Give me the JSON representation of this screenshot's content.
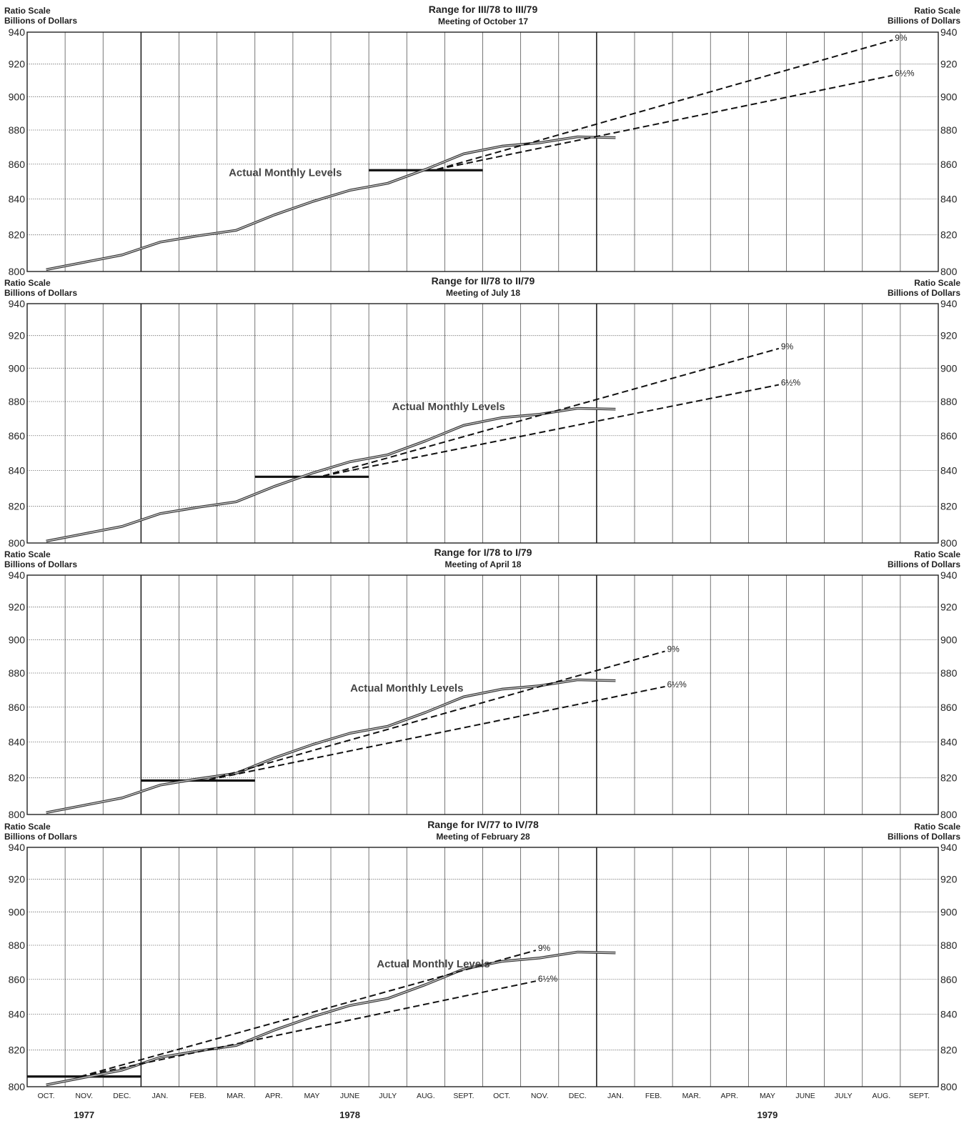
{
  "months": [
    "OCT.",
    "NOV.",
    "DEC.",
    "JAN.",
    "FEB.",
    "MAR.",
    "APR.",
    "MAY",
    "JUNE",
    "JULY",
    "AUG.",
    "SEPT.",
    "OCT.",
    "NOV.",
    "DEC.",
    "JAN.",
    "FEB.",
    "MAR.",
    "APR.",
    "MAY",
    "JUNE",
    "JULY",
    "AUG.",
    "SEPT."
  ],
  "years": [
    {
      "label": "1977",
      "month_index": 1
    },
    {
      "label": "1978",
      "month_index": 8
    },
    {
      "label": "1979",
      "month_index": 19
    }
  ],
  "chart_data": [
    {
      "type": "line",
      "title": "Range for III/78 to III/79",
      "subtitle": "Meeting of October 17",
      "ylabel_left": [
        "Ratio Scale",
        "Billions of Dollars"
      ],
      "ylabel_right": [
        "Ratio Scale",
        "Billions of Dollars"
      ],
      "y_scale": "log",
      "ylim": [
        800,
        940
      ],
      "yticks": [
        800,
        820,
        840,
        860,
        880,
        900,
        920,
        940
      ],
      "actual_label": "Actual Monthly Levels",
      "actual": [
        801,
        805,
        809,
        816,
        819.5,
        822.5,
        831,
        838.5,
        845,
        849,
        857,
        866,
        870.5,
        872.5,
        876,
        875.5
      ],
      "base": {
        "start_month": 9,
        "end_month": 12,
        "value": 856.5
      },
      "cones": [
        {
          "label": "9%",
          "start_month": 10.8,
          "start_value": 857,
          "end_month": 22.8,
          "end_value": 935
        },
        {
          "label": "6½%",
          "start_month": 10.8,
          "start_value": 857,
          "end_month": 22.8,
          "end_value": 913
        }
      ]
    },
    {
      "type": "line",
      "title": "Range for II/78 to II/79",
      "subtitle": "Meeting of July 18",
      "ylabel_left": [
        "Ratio Scale",
        "Billions of Dollars"
      ],
      "ylabel_right": [
        "Ratio Scale",
        "Billions of Dollars"
      ],
      "y_scale": "log",
      "ylim": [
        800,
        940
      ],
      "yticks": [
        800,
        820,
        840,
        860,
        880,
        900,
        920,
        940
      ],
      "actual_label": "Actual Monthly Levels",
      "actual": [
        801,
        805,
        809,
        816,
        819.5,
        822.5,
        831,
        838.5,
        845,
        849,
        857,
        866,
        870.5,
        872.5,
        876,
        875.5
      ],
      "base": {
        "start_month": 6,
        "end_month": 9,
        "value": 836.5
      },
      "cones": [
        {
          "label": "9%",
          "start_month": 7.8,
          "start_value": 837,
          "end_month": 19.8,
          "end_value": 912
        },
        {
          "label": "6½%",
          "start_month": 7.8,
          "start_value": 837,
          "end_month": 19.8,
          "end_value": 890
        }
      ]
    },
    {
      "type": "line",
      "title": "Range for I/78 to I/79",
      "subtitle": "Meeting of April 18",
      "ylabel_left": [
        "Ratio Scale",
        "Billions of Dollars"
      ],
      "ylabel_right": [
        "Ratio Scale",
        "Billions of Dollars"
      ],
      "y_scale": "log",
      "ylim": [
        800,
        940
      ],
      "yticks": [
        800,
        820,
        840,
        860,
        880,
        900,
        920,
        940
      ],
      "actual_label": "Actual Monthly Levels",
      "actual": [
        801,
        805,
        809,
        816,
        819.5,
        822.5,
        831,
        838.5,
        845,
        849,
        857,
        866,
        870.5,
        872.5,
        876,
        875.5
      ],
      "base": {
        "start_month": 3,
        "end_month": 6,
        "value": 818.5
      },
      "cones": [
        {
          "label": "9%",
          "start_month": 4.8,
          "start_value": 819,
          "end_month": 16.8,
          "end_value": 893
        },
        {
          "label": "6½%",
          "start_month": 4.8,
          "start_value": 819,
          "end_month": 16.8,
          "end_value": 872
        }
      ]
    },
    {
      "type": "line",
      "title": "Range for IV/77 to IV/78",
      "subtitle": "Meeting of February 28",
      "ylabel_left": [
        "Ratio Scale",
        "Billions of Dollars"
      ],
      "ylabel_right": [
        "Ratio Scale",
        "Billions of Dollars"
      ],
      "y_scale": "log",
      "ylim": [
        800,
        940
      ],
      "yticks": [
        800,
        820,
        840,
        860,
        880,
        900,
        920,
        940
      ],
      "actual_label": "Actual Monthly Levels",
      "actual": [
        801,
        805,
        809,
        816,
        819.5,
        822.5,
        831,
        838.5,
        845,
        849,
        857,
        866,
        870.5,
        872.5,
        876,
        875.5
      ],
      "base": {
        "start_month": 0,
        "end_month": 3,
        "value": 805.5
      },
      "cones": [
        {
          "label": "9%",
          "start_month": 1.4,
          "start_value": 805.5,
          "end_month": 13.4,
          "end_value": 877
        },
        {
          "label": "6½%",
          "start_month": 1.4,
          "start_value": 805.5,
          "end_month": 13.4,
          "end_value": 859
        }
      ]
    }
  ]
}
